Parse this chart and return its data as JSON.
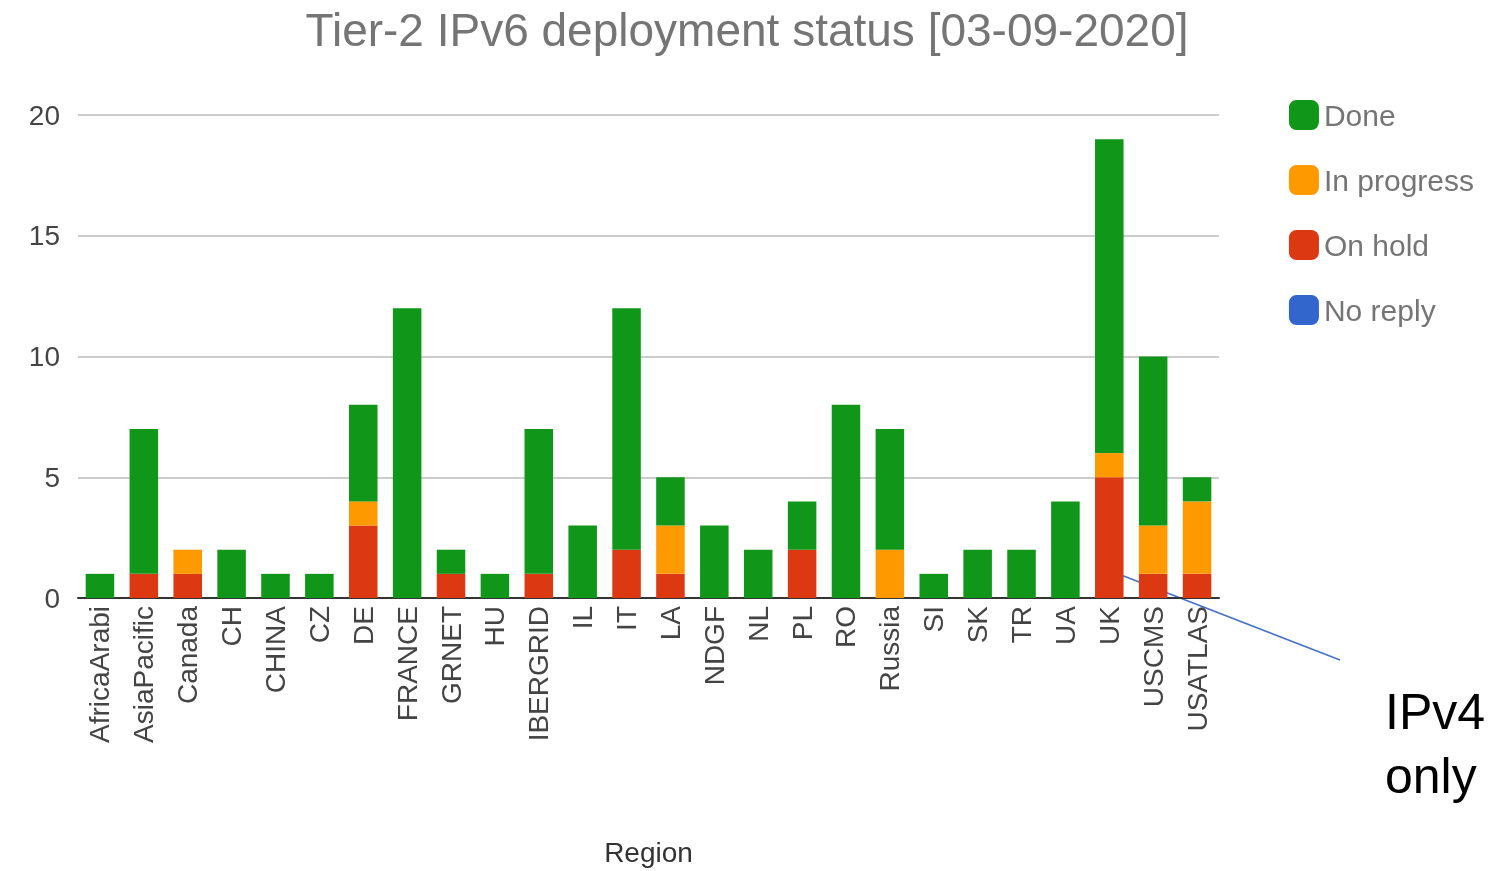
{
  "chart_data": {
    "type": "bar",
    "title": "Tier-2 IPv6 deployment status [03-09-2020]",
    "xlabel": "Region",
    "categories": [
      "AfricaArabi",
      "AsiaPacific",
      "Canada",
      "CH",
      "CHINA",
      "CZ",
      "DE",
      "FRANCE",
      "GRNET",
      "HU",
      "IBERGRID",
      "IL",
      "IT",
      "LA",
      "NDGF",
      "NL",
      "PL",
      "RO",
      "Russia",
      "SI",
      "SK",
      "TR",
      "UA",
      "UK",
      "USCMS",
      "USATLAS"
    ],
    "series": [
      {
        "name": "On hold",
        "color": "#dc3912",
        "values": [
          0,
          1,
          1,
          0,
          0,
          0,
          3,
          0,
          1,
          0,
          1,
          0,
          2,
          1,
          0,
          0,
          2,
          0,
          0,
          0,
          0,
          0,
          0,
          5,
          1,
          1
        ]
      },
      {
        "name": "In progress",
        "color": "#ff9900",
        "values": [
          0,
          0,
          1,
          0,
          0,
          0,
          1,
          0,
          0,
          0,
          0,
          0,
          0,
          2,
          0,
          0,
          0,
          0,
          2,
          0,
          0,
          0,
          0,
          1,
          2,
          3
        ]
      },
      {
        "name": "Done",
        "color": "#109618",
        "values": [
          1,
          6,
          0,
          2,
          1,
          1,
          4,
          12,
          1,
          1,
          6,
          3,
          10,
          2,
          3,
          2,
          2,
          8,
          5,
          1,
          2,
          2,
          4,
          13,
          7,
          1
        ]
      },
      {
        "name": "No reply",
        "color": "#3366cc",
        "values": [
          0,
          0,
          0,
          0,
          0,
          0,
          0,
          0,
          0,
          0,
          0,
          0,
          0,
          0,
          0,
          0,
          0,
          0,
          0,
          0,
          0,
          0,
          0,
          0,
          0,
          0
        ]
      }
    ],
    "stacked": true,
    "ylim": [
      0,
      20
    ],
    "yticks": [
      0,
      5,
      10,
      15,
      20
    ],
    "grid": "y",
    "legend": "top right",
    "annotations": [
      "IPv4 only"
    ]
  }
}
